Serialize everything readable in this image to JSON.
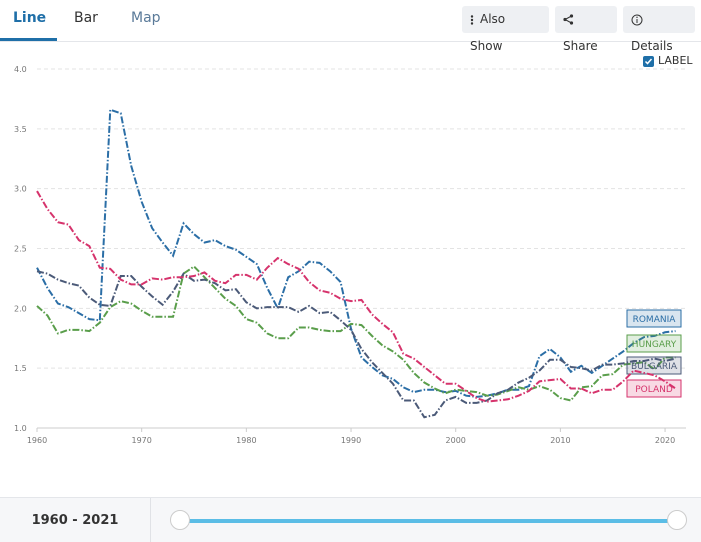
{
  "ui": {
    "tabs": [
      "Line",
      "Bar",
      "Map"
    ],
    "buttons": [
      "Also Show",
      "Share",
      "Details"
    ],
    "label_toggle": "LABEL",
    "range_label": "1960 - 2021"
  },
  "chart_data": {
    "type": "line",
    "x": [
      1960,
      1961,
      1962,
      1963,
      1964,
      1965,
      1966,
      1967,
      1968,
      1969,
      1970,
      1971,
      1972,
      1973,
      1974,
      1975,
      1976,
      1977,
      1978,
      1979,
      1980,
      1981,
      1982,
      1983,
      1984,
      1985,
      1986,
      1987,
      1988,
      1989,
      1990,
      1991,
      1992,
      1993,
      1994,
      1995,
      1996,
      1997,
      1998,
      1999,
      2000,
      2001,
      2002,
      2003,
      2004,
      2005,
      2006,
      2007,
      2008,
      2009,
      2010,
      2011,
      2012,
      2013,
      2014,
      2015,
      2016,
      2017,
      2018,
      2019,
      2020,
      2021
    ],
    "xlim": [
      1960,
      2022
    ],
    "xticks": [
      1960,
      1970,
      1980,
      1990,
      2000,
      2010,
      2020
    ],
    "ylim": [
      1.0,
      4.0
    ],
    "yticks": [
      {
        "value": 1.0,
        "label": "1.0"
      },
      {
        "value": 1.5,
        "label": "1.5"
      },
      {
        "value": 2.0,
        "label": "2.0"
      },
      {
        "value": 2.5,
        "label": "2.5"
      },
      {
        "value": 3.0,
        "label": "3.0"
      },
      {
        "value": 3.5,
        "label": "3.5"
      },
      {
        "value": 4.0,
        "label": "4.0"
      }
    ],
    "grid": true,
    "series": [
      {
        "name": "ROMANIA",
        "color": "#2b6ea6",
        "values": [
          2.34,
          2.17,
          2.04,
          2.01,
          1.96,
          1.91,
          1.9,
          3.66,
          3.63,
          3.19,
          2.89,
          2.67,
          2.55,
          2.44,
          2.71,
          2.62,
          2.55,
          2.57,
          2.52,
          2.49,
          2.43,
          2.37,
          2.17,
          2.0,
          2.26,
          2.31,
          2.39,
          2.38,
          2.31,
          2.22,
          1.83,
          1.59,
          1.51,
          1.44,
          1.41,
          1.34,
          1.3,
          1.32,
          1.32,
          1.3,
          1.31,
          1.27,
          1.26,
          1.27,
          1.29,
          1.32,
          1.32,
          1.35,
          1.6,
          1.66,
          1.59,
          1.47,
          1.52,
          1.46,
          1.52,
          1.58,
          1.64,
          1.71,
          1.76,
          1.77,
          1.8,
          1.81
        ]
      },
      {
        "name": "HUNGARY",
        "color": "#5a9e4b",
        "values": [
          2.02,
          1.94,
          1.79,
          1.82,
          1.82,
          1.81,
          1.88,
          2.01,
          2.06,
          2.04,
          1.98,
          1.93,
          1.93,
          1.93,
          2.29,
          2.35,
          2.26,
          2.17,
          2.08,
          2.02,
          1.91,
          1.88,
          1.79,
          1.75,
          1.75,
          1.84,
          1.84,
          1.82,
          1.81,
          1.81,
          1.87,
          1.86,
          1.77,
          1.69,
          1.64,
          1.57,
          1.46,
          1.38,
          1.33,
          1.29,
          1.32,
          1.31,
          1.3,
          1.27,
          1.28,
          1.31,
          1.34,
          1.32,
          1.35,
          1.32,
          1.25,
          1.23,
          1.34,
          1.35,
          1.44,
          1.45,
          1.53,
          1.54,
          1.55,
          1.49,
          1.59,
          1.59
        ]
      },
      {
        "name": "BULGARIA",
        "color": "#4b5a78",
        "values": [
          2.31,
          2.29,
          2.24,
          2.21,
          2.19,
          2.09,
          2.03,
          2.02,
          2.27,
          2.27,
          2.18,
          2.1,
          2.03,
          2.14,
          2.29,
          2.23,
          2.24,
          2.21,
          2.15,
          2.16,
          2.05,
          2.0,
          2.01,
          2.01,
          2.01,
          1.97,
          2.02,
          1.96,
          1.97,
          1.9,
          1.82,
          1.66,
          1.55,
          1.46,
          1.37,
          1.23,
          1.23,
          1.09,
          1.11,
          1.23,
          1.26,
          1.21,
          1.21,
          1.23,
          1.29,
          1.32,
          1.38,
          1.42,
          1.48,
          1.57,
          1.57,
          1.51,
          1.5,
          1.48,
          1.53,
          1.53,
          1.54,
          1.56,
          1.56,
          1.58,
          1.56,
          1.58
        ]
      },
      {
        "name": "POLAND",
        "color": "#d6336c",
        "values": [
          2.98,
          2.83,
          2.72,
          2.7,
          2.57,
          2.52,
          2.34,
          2.33,
          2.24,
          2.2,
          2.2,
          2.25,
          2.24,
          2.26,
          2.26,
          2.27,
          2.3,
          2.23,
          2.21,
          2.28,
          2.28,
          2.24,
          2.34,
          2.42,
          2.37,
          2.33,
          2.22,
          2.15,
          2.13,
          2.08,
          2.06,
          2.07,
          1.95,
          1.87,
          1.8,
          1.62,
          1.58,
          1.51,
          1.44,
          1.37,
          1.37,
          1.31,
          1.25,
          1.22,
          1.23,
          1.24,
          1.27,
          1.31,
          1.39,
          1.4,
          1.41,
          1.33,
          1.33,
          1.29,
          1.32,
          1.32,
          1.39,
          1.48,
          1.46,
          1.44,
          1.39,
          1.33
        ]
      }
    ]
  }
}
